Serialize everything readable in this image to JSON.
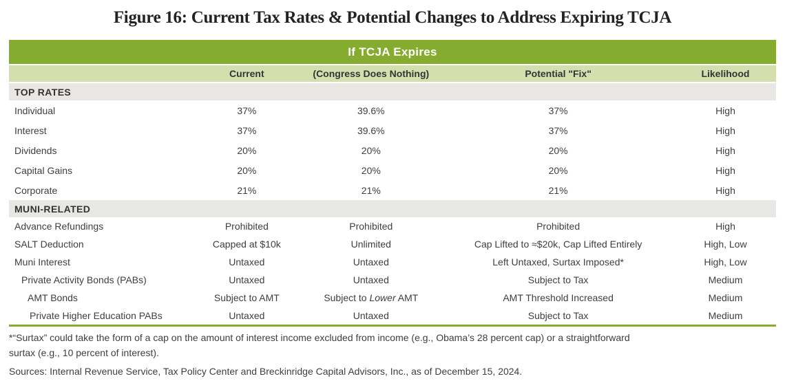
{
  "title": "Figure 16: Current Tax Rates & Potential Changes to Address Expiring TCJA",
  "table": {
    "banner": "If TCJA Expires",
    "columns": [
      "",
      "Current",
      "(Congress Does Nothing)",
      "Potential \"Fix\"",
      "Likelihood"
    ],
    "sections": [
      {
        "header": "TOP RATES",
        "rows": [
          {
            "label": "Individual",
            "indent": 0,
            "current": "37%",
            "expires": "39.6%",
            "fix": "37%",
            "likelihood": "High"
          },
          {
            "label": "Interest",
            "indent": 0,
            "current": "37%",
            "expires": "39.6%",
            "fix": "37%",
            "likelihood": "High"
          },
          {
            "label": "Dividends",
            "indent": 0,
            "current": "20%",
            "expires": "20%",
            "fix": "20%",
            "likelihood": "High"
          },
          {
            "label": "Capital Gains",
            "indent": 0,
            "current": "20%",
            "expires": "20%",
            "fix": "20%",
            "likelihood": "High"
          },
          {
            "label": "Corporate",
            "indent": 0,
            "current": "21%",
            "expires": "21%",
            "fix": "21%",
            "likelihood": "High"
          }
        ]
      },
      {
        "header": "MUNI-RELATED",
        "rows": [
          {
            "label": "Advance Refundings",
            "indent": 0,
            "current": "Prohibited",
            "expires": "Prohibited",
            "fix": "Prohibited",
            "likelihood": "High"
          },
          {
            "label": "SALT Deduction",
            "indent": 0,
            "current": "Capped at $10k",
            "expires": "Unlimited",
            "fix": "Cap Lifted to ≈$20k, Cap Lifted Entirely",
            "likelihood": "High, Low"
          },
          {
            "label": "Muni Interest",
            "indent": 0,
            "current": "Untaxed",
            "expires": "Untaxed",
            "fix": "Left Untaxed, Surtax Imposed*",
            "likelihood": "High, Low"
          },
          {
            "label": "Private Activity Bonds (PABs)",
            "indent": 1,
            "current": "Untaxed",
            "expires": "Untaxed",
            "fix": "Subject to Tax",
            "likelihood": "Medium"
          },
          {
            "label": "AMT Bonds",
            "indent": 2,
            "current": "Subject to AMT",
            "expires": [
              {
                "text": "Subject to "
              },
              {
                "text": "Lower",
                "italic": true
              },
              {
                "text": " AMT"
              }
            ],
            "fix": "AMT Threshold Increased",
            "likelihood": "Medium"
          },
          {
            "label": "Private Higher Education PABs",
            "indent": 3,
            "current": "Untaxed",
            "expires": "Untaxed",
            "fix": "Subject to Tax",
            "likelihood": "Medium"
          }
        ]
      }
    ]
  },
  "footnote_lines": [
    "*“Surtax” could take the form of a cap on the amount of interest income excluded from income (e.g., Obama’s 28 percent cap) or a straightforward",
    "surtax (e.g., 10 percent of interest)."
  ],
  "sources": "Sources: Internal Revenue Service, Tax Policy Center and Breckinridge Capital Advisors, Inc., as of December 15, 2024.",
  "colors": {
    "banner_green": "#85AC2F",
    "header_light_green": "#D4DFAF",
    "section_gray": "#E9E7E3",
    "rule_green": "#85AC2F",
    "text": "#3E3E3E"
  }
}
